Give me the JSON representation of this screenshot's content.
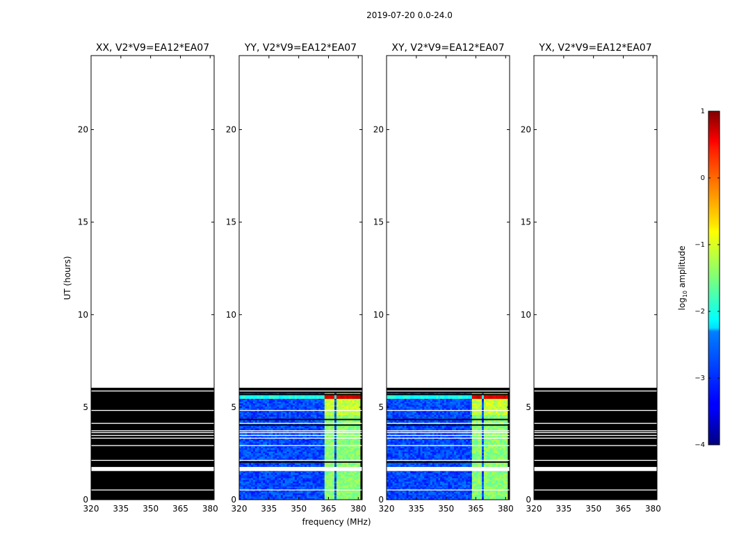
{
  "figure": {
    "suptitle": "2019-07-20 0.0-24.0"
  },
  "chart_data": {
    "type": "heatmap",
    "panels": [
      {
        "title": "XX, V2*V9=EA12*EA07",
        "mode": "flagged"
      },
      {
        "title": "YY, V2*V9=EA12*EA07",
        "mode": "data"
      },
      {
        "title": "XY, V2*V9=EA12*EA07",
        "mode": "data"
      },
      {
        "title": "YX, V2*V9=EA12*EA07",
        "mode": "flagged"
      }
    ],
    "xlabel": "frequency (MHz)",
    "ylabel": "UT (hours)",
    "xlim": [
      320,
      382
    ],
    "ylim": [
      0,
      24
    ],
    "xticks": [
      320,
      335,
      350,
      365,
      380
    ],
    "yticks": [
      0,
      5,
      10,
      15,
      20
    ],
    "data_time_range_hours": [
      0,
      6.05
    ],
    "white_gap_rows_hours": [
      0.5,
      1.55,
      1.6,
      1.65,
      2.1,
      2.9,
      3.3,
      3.45,
      3.6,
      3.7,
      4.1,
      4.8,
      5.85
    ],
    "dark_rows_hours": [
      2.0,
      4.0,
      4.3,
      5.65
    ],
    "strong_bands_mhz": [
      [
        363.5,
        368
      ],
      [
        369,
        372.5
      ],
      [
        373.5,
        378
      ],
      [
        378.5,
        381
      ]
    ],
    "colorbar": {
      "label_prefix": "log",
      "label_sub": "10",
      "label_suffix": " amplitude",
      "vmin": -4,
      "vmax": 1,
      "ticks": [
        -4,
        -3,
        -2,
        -1,
        0,
        1
      ],
      "tick_labels": [
        "−4",
        "−3",
        "−2",
        "−1",
        "0",
        "1"
      ],
      "colormap": "jet"
    }
  }
}
